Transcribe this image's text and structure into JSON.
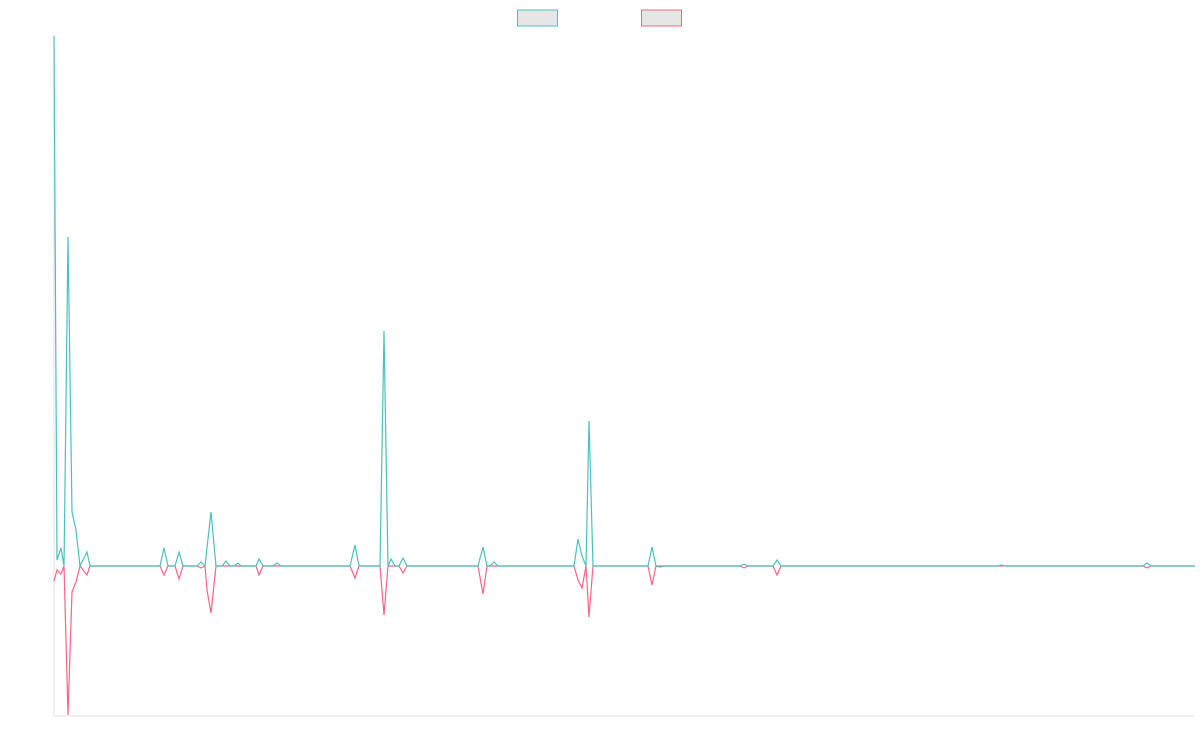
{
  "chart_data": {
    "type": "line",
    "xlim": [
      54,
      1195
    ],
    "ylim": [
      -150,
      530
    ],
    "series": [
      {
        "color": "#4bc0c0",
        "x": [
          54,
          57,
          61,
          64,
          68,
          72,
          76,
          80,
          87,
          90,
          160,
          164,
          168,
          175,
          179,
          183,
          197,
          201,
          205,
          211,
          216,
          222,
          226,
          230,
          234,
          238,
          241,
          256,
          259,
          263,
          273,
          277,
          281,
          350,
          355,
          359,
          380,
          384,
          388,
          391,
          395,
          399,
          403,
          407,
          478,
          483,
          487,
          490,
          494,
          498,
          574,
          578,
          582,
          586,
          589,
          593,
          648,
          652,
          656,
          740,
          744,
          748,
          773,
          777,
          781,
          998,
          1001,
          1005,
          1143,
          1147,
          1151,
          1195
        ],
        "values": [
          530,
          6,
          18,
          0,
          329,
          54,
          36,
          0,
          14,
          0,
          0,
          18,
          0,
          0,
          14,
          0,
          0,
          4,
          0,
          54,
          0,
          0,
          5,
          0,
          0,
          3,
          0,
          0,
          7,
          0,
          0,
          3,
          0,
          0,
          21,
          0,
          0,
          235,
          0,
          7,
          0,
          0,
          8,
          0,
          0,
          19,
          0,
          0,
          4,
          0,
          0,
          27,
          10,
          0,
          145,
          0,
          0,
          19,
          0,
          0,
          2,
          0,
          0,
          6,
          0,
          0,
          1,
          0,
          0,
          3,
          0,
          0
        ]
      },
      {
        "color": "#ff6384",
        "x": [
          54,
          57,
          61,
          64,
          68,
          72,
          76,
          80,
          87,
          90,
          160,
          164,
          168,
          175,
          179,
          183,
          197,
          201,
          205,
          207,
          211,
          216,
          256,
          259,
          263,
          350,
          355,
          359,
          380,
          384,
          388,
          399,
          403,
          407,
          478,
          483,
          487,
          574,
          578,
          582,
          586,
          589,
          593,
          648,
          652,
          656,
          660,
          664,
          740,
          744,
          748,
          773,
          777,
          781,
          1143,
          1147,
          1151,
          1195
        ],
        "values": [
          -15,
          -4,
          -8,
          0,
          -149,
          -26,
          -16,
          0,
          -9,
          0,
          0,
          -9,
          0,
          0,
          -13,
          0,
          0,
          -2,
          0,
          -24,
          -47,
          0,
          0,
          -9,
          0,
          0,
          -12,
          0,
          0,
          -49,
          0,
          0,
          -7,
          0,
          0,
          -28,
          0,
          0,
          -14,
          -22,
          0,
          -51,
          0,
          0,
          -19,
          0,
          -1,
          0,
          0,
          -2,
          0,
          0,
          -9,
          0,
          0,
          -2,
          0,
          0
        ]
      }
    ]
  }
}
